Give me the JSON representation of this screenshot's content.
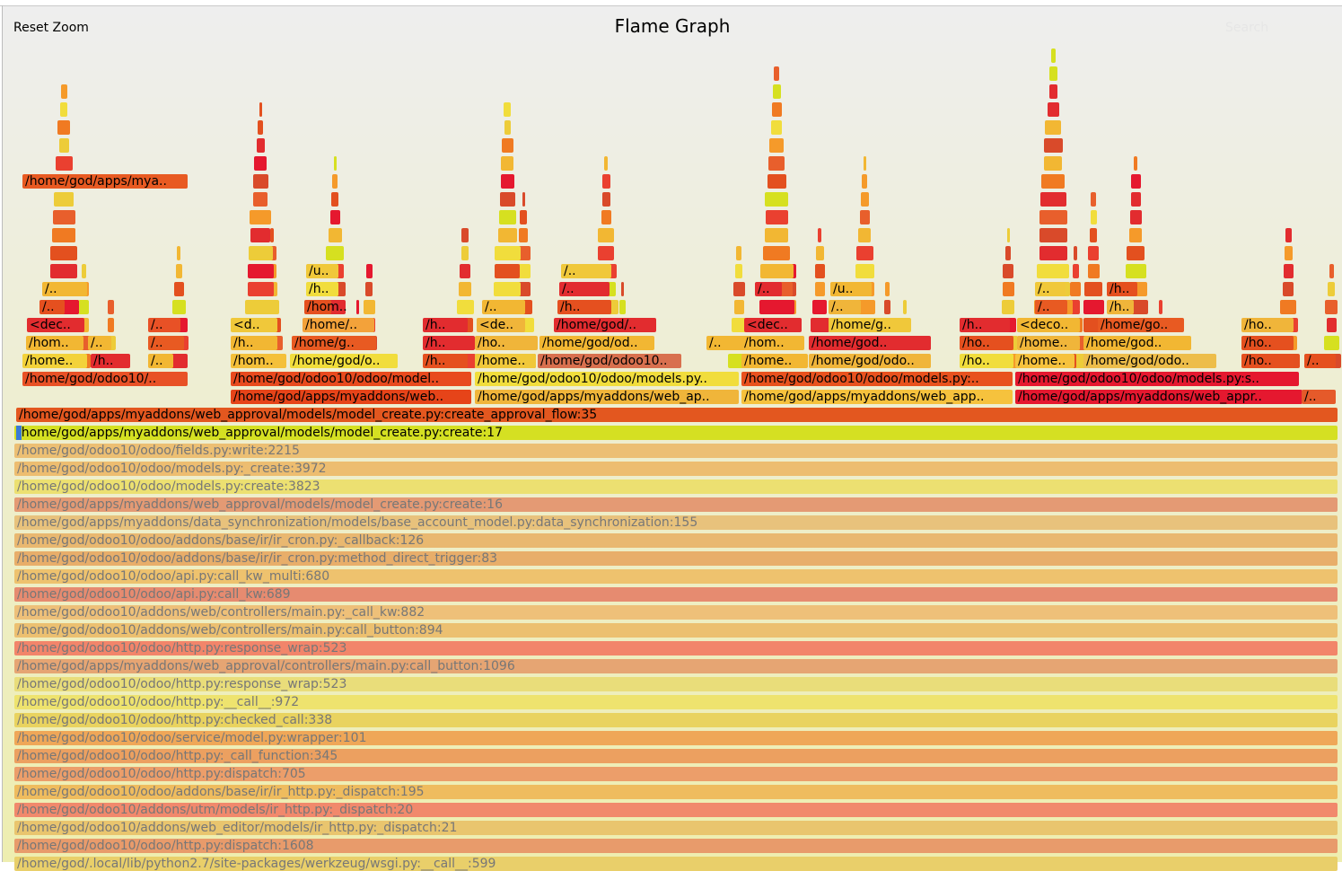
{
  "title": "Flame Graph",
  "reset_zoom_label": "Reset Zoom",
  "search_label": "Search",
  "colors": {
    "palette": [
      "#e3501f",
      "#e85f2c",
      "#f07a22",
      "#f59a2a",
      "#f2b733",
      "#edcc39",
      "#f1dd3c",
      "#d6e020",
      "#d94a2a",
      "#e22c2f",
      "#e5182f",
      "#ea4030"
    ],
    "faded": [
      "#ecbf73",
      "#edc271",
      "#ece071",
      "#e8a173",
      "#e8c27c",
      "#e9b870",
      "#e8a86a",
      "#eec26e",
      "#e88b6e",
      "#eec079",
      "#ecc070",
      "#f2856a",
      "#e6a573",
      "#e9dd7a",
      "#e9d973",
      "#e9d35f",
      "#efa758",
      "#eca060",
      "#ec9e6a",
      "#efbc5e",
      "#f1896c",
      "#e9c56e",
      "#e89b6b",
      "#e9cf6a"
    ]
  },
  "stack": [
    {
      "label": "/home/god/apps/myaddons/web_approval/models/model_create.py:create_approval_flow:35",
      "color": "#e3571f",
      "faded": false
    },
    {
      "label": "/home/god/apps/myaddons/web_approval/models/model_create.py:create:17",
      "color": "#d5e022",
      "faded": false
    },
    {
      "label": "/home/god/odoo10/odoo/fields.py:write:2215",
      "color": "#ecbf73",
      "faded": true
    },
    {
      "label": "/home/god/odoo10/odoo/models.py:_create:3972",
      "color": "#edbd70",
      "faded": true
    },
    {
      "label": "/home/god/odoo10/odoo/models.py:create:3823",
      "color": "#ece071",
      "faded": true
    },
    {
      "label": "/home/god/apps/myaddons/web_approval/models/model_create.py:create:16",
      "color": "#e49a74",
      "faded": true
    },
    {
      "label": "/home/god/apps/myaddons/data_synchronization/models/base_account_model.py:data_synchronization:155",
      "color": "#e8c27c",
      "faded": true
    },
    {
      "label": "/home/god/odoo10/odoo/addons/base/ir/ir_cron.py:_callback:126",
      "color": "#e9b870",
      "faded": true
    },
    {
      "label": "/home/god/odoo10/odoo/addons/base/ir/ir_cron.py:method_direct_trigger:83",
      "color": "#e8ae6a",
      "faded": true
    },
    {
      "label": "/home/god/odoo10/odoo/api.py:call_kw_multi:680",
      "color": "#eec26e",
      "faded": true
    },
    {
      "label": "/home/god/odoo10/odoo/api.py:call_kw:689",
      "color": "#e68b70",
      "faded": true
    },
    {
      "label": "/home/god/odoo10/addons/web/controllers/main.py:_call_kw:882",
      "color": "#eec079",
      "faded": true
    },
    {
      "label": "/home/god/odoo10/addons/web/controllers/main.py:call_button:894",
      "color": "#ecc070",
      "faded": true
    },
    {
      "label": "/home/god/odoo10/odoo/http.py:response_wrap:523",
      "color": "#f2856a",
      "faded": true
    },
    {
      "label": "/home/god/apps/myaddons/web_approval/controllers/main.py:call_button:1096",
      "color": "#e6a573",
      "faded": true
    },
    {
      "label": "/home/god/odoo10/odoo/http.py:response_wrap:523",
      "color": "#e9dd7a",
      "faded": true
    },
    {
      "label": "/home/god/odoo10/odoo/http.py:__call__:972",
      "color": "#eee36e",
      "faded": true
    },
    {
      "label": "/home/god/odoo10/odoo/http.py:checked_call:338",
      "color": "#e9d35f",
      "faded": true
    },
    {
      "label": "/home/god/odoo10/odoo/service/model.py:wrapper:101",
      "color": "#efa758",
      "faded": true
    },
    {
      "label": "/home/god/odoo10/odoo/http.py:_call_function:345",
      "color": "#eca060",
      "faded": true
    },
    {
      "label": "/home/god/odoo10/odoo/http.py:dispatch:705",
      "color": "#ec9e6a",
      "faded": true
    },
    {
      "label": "/home/god/odoo10/odoo/addons/base/ir/ir_http.py:_dispatch:195",
      "color": "#efbc5e",
      "faded": true
    },
    {
      "label": "/home/god/odoo10/addons/utm/models/ir_http.py:_dispatch:20",
      "color": "#f1896c",
      "faded": true
    },
    {
      "label": "/home/god/odoo10/addons/web_editor/models/ir_http.py:_dispatch:21",
      "color": "#e9c56e",
      "faded": true
    },
    {
      "label": "/home/god/odoo10/odoo/http.py:dispatch:1608",
      "color": "#e89b6b",
      "faded": true
    },
    {
      "label": "/home/god/.local/lib/python2.7/site-packages/werkzeug/wsgi.py:__call__:599",
      "color": "#e9cf6a",
      "faded": true
    }
  ],
  "upper_frames": [
    {
      "label": "/home/god/apps/mya..",
      "color": "#e85a22"
    },
    {
      "label": "/home/god/apps/myaddons/web..",
      "color": "#e64419"
    },
    {
      "label": "/home/god/apps/myaddons/web_ap..",
      "color": "#f0b53a"
    },
    {
      "label": "/home/god/apps/myaddons/web_app..",
      "color": "#f6c23d"
    },
    {
      "label": "/home/god/apps/myaddons/web_appr..",
      "color": "#e5182f"
    },
    {
      "label": "/..",
      "color": "#e55a2a"
    },
    {
      "label": "/home/god/odoo10/..",
      "color": "#e85126"
    },
    {
      "label": "/home/god/odoo10/odoo/model..",
      "color": "#e84a1e"
    },
    {
      "label": "/home/god/odoo10/odoo/models.py..",
      "color": "#f1dd3c"
    },
    {
      "label": "/home/god/odoo10/odoo/models.py:..",
      "color": "#e8521e"
    },
    {
      "label": "/home/god/odoo10/odoo/models.py:s..",
      "color": "#e5182f"
    },
    {
      "label": "/home..",
      "color": "#f3d23a"
    },
    {
      "label": "/h..",
      "color": "#e22c2f"
    },
    {
      "label": "/..",
      "color": "#f2b733"
    },
    {
      "label": "/hom..",
      "color": "#f4c03a"
    },
    {
      "label": "/home/god/o..",
      "color": "#f1dd3c"
    },
    {
      "label": "/h..",
      "color": "#e5501f"
    },
    {
      "label": "/home..",
      "color": "#f0c83a"
    },
    {
      "label": "/home/god/odoo10..",
      "color": "#d8704e"
    },
    {
      "label": "/home..",
      "color": "#f2b733"
    },
    {
      "label": "/home/god/odo..",
      "color": "#f0b53a"
    },
    {
      "label": "/ho..",
      "color": "#f1dd3c"
    },
    {
      "label": "/home..",
      "color": "#f6c23d"
    },
    {
      "label": "/home/god/odo..",
      "color": "#edbd4a"
    },
    {
      "label": "/ho..",
      "color": "#e5501f"
    },
    {
      "label": "/..",
      "color": "#e5501f"
    },
    {
      "label": "/hom..",
      "color": "#f2b733"
    },
    {
      "label": "/..",
      "color": "#f2b733"
    },
    {
      "label": "/..",
      "color": "#e85a22"
    },
    {
      "label": "/h..",
      "color": "#f2b733"
    },
    {
      "label": "/home/g..",
      "color": "#e85a22"
    },
    {
      "label": "/h..",
      "color": "#e22c2f"
    },
    {
      "label": "/ho..",
      "color": "#f0b53a"
    },
    {
      "label": "/home/god/od..",
      "color": "#f2b733"
    },
    {
      "label": "/..",
      "color": "#f2b733"
    },
    {
      "label": "/hom..",
      "color": "#f2b733"
    },
    {
      "label": "/home/god..",
      "color": "#e22c2f"
    },
    {
      "label": "/ho..",
      "color": "#e5501f"
    },
    {
      "label": "/home..",
      "color": "#f0b53a"
    },
    {
      "label": "/home/god..",
      "color": "#f2b733"
    },
    {
      "label": "/ho..",
      "color": "#e5501f"
    },
    {
      "label": "<dec..",
      "color": "#e22c2f"
    },
    {
      "label": "/..",
      "color": "#e85126"
    },
    {
      "label": "<d..",
      "color": "#f0c83a"
    },
    {
      "label": "/home/..",
      "color": "#f3a23a"
    },
    {
      "label": "/h..",
      "color": "#e22c2f"
    },
    {
      "label": "<de..",
      "color": "#f0b53a"
    },
    {
      "label": "/home/god/..",
      "color": "#e22c2f"
    },
    {
      "label": "<dec..",
      "color": "#e22c2f"
    },
    {
      "label": "/home/g..",
      "color": "#f0c83a"
    },
    {
      "label": "/h..",
      "color": "#e22c2f"
    },
    {
      "label": "<deco..",
      "color": "#f2b733"
    },
    {
      "label": "/home/go..",
      "color": "#e85a22"
    },
    {
      "label": "/ho..",
      "color": "#f0b53a"
    },
    {
      "label": "/..",
      "color": "#e5501f"
    },
    {
      "label": "/hom..",
      "color": "#e5501f"
    },
    {
      "label": "/..",
      "color": "#f2b733"
    },
    {
      "label": "/h..",
      "color": "#e5501f"
    },
    {
      "label": "/..",
      "color": "#f0b53a"
    },
    {
      "label": "/..",
      "color": "#e85a22"
    },
    {
      "label": "/h..",
      "color": "#f0b53a"
    },
    {
      "label": "/h..",
      "color": "#f1dd3c"
    },
    {
      "label": "/..",
      "color": "#e22c2f"
    },
    {
      "label": "/..",
      "color": "#e22c2f"
    },
    {
      "label": "/u..",
      "color": "#f2b733"
    },
    {
      "label": "/..",
      "color": "#f0c83a"
    },
    {
      "label": "/h..",
      "color": "#e5501f"
    },
    {
      "label": "/..",
      "color": "#f2b733"
    },
    {
      "label": "/u..",
      "color": "#f0c83a"
    },
    {
      "label": "/..",
      "color": "#f0c83a"
    }
  ]
}
